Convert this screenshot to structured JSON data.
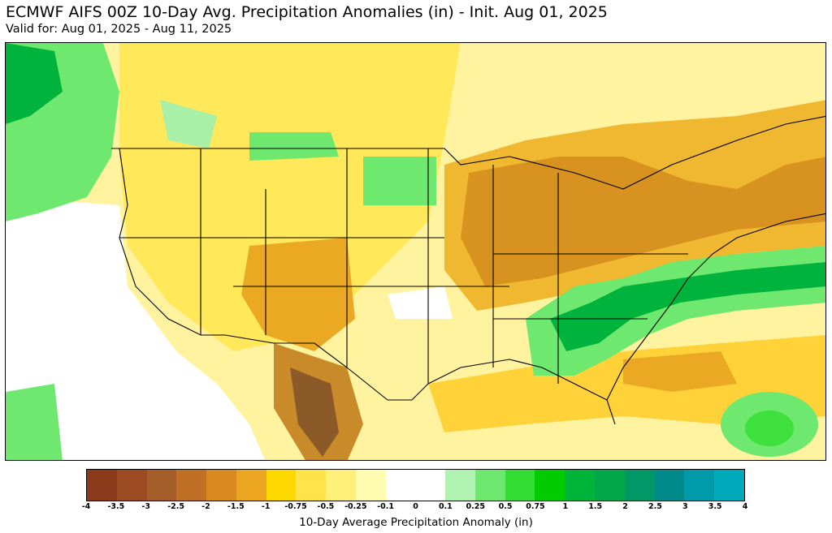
{
  "header": {
    "title": "ECMWF AIFS 00Z 10-Day Avg. Precipitation Anomalies (in) - Init. Aug 01, 2025",
    "subtitle": "Valid for: Aug 01, 2025 - Aug 11, 2025"
  },
  "map": {
    "region": "Contiguous United States",
    "colors": {
      "dry_extreme": "#8b3a1c",
      "dry_strong": "#c98a2a",
      "dry_moderate": "#eaa823",
      "dry_light": "#ffd800",
      "dry_slight": "#fff07a",
      "neutral": "#ffffff",
      "wet_light": "#a8f0a8",
      "wet_moderate": "#3ee03e",
      "wet_strong": "#00b33c",
      "boundary": "#000000"
    }
  },
  "colorbar": {
    "label": "10-Day Average Precipitation Anomaly (in)",
    "colors": [
      "#8b3a1c",
      "#9b4a22",
      "#a55d2a",
      "#c07025",
      "#d8891f",
      "#eba520",
      "#ffd800",
      "#ffe34a",
      "#fff07a",
      "#fffcb0",
      "#ffffff",
      "#ffffff",
      "#b0f2b0",
      "#6ee86e",
      "#33dd33",
      "#00cc00",
      "#00b43a",
      "#00a84a",
      "#009866",
      "#008a8a",
      "#009aaa",
      "#00aabb"
    ],
    "ticks": [
      "-4",
      "-3.5",
      "-3",
      "-2.5",
      "-2",
      "-1.5",
      "-1",
      "-0.75",
      "-0.5",
      "-0.25",
      "-0.1",
      "0",
      "0.1",
      "0.25",
      "0.5",
      "0.75",
      "1",
      "1.5",
      "2",
      "2.5",
      "3",
      "3.5",
      "4"
    ]
  }
}
